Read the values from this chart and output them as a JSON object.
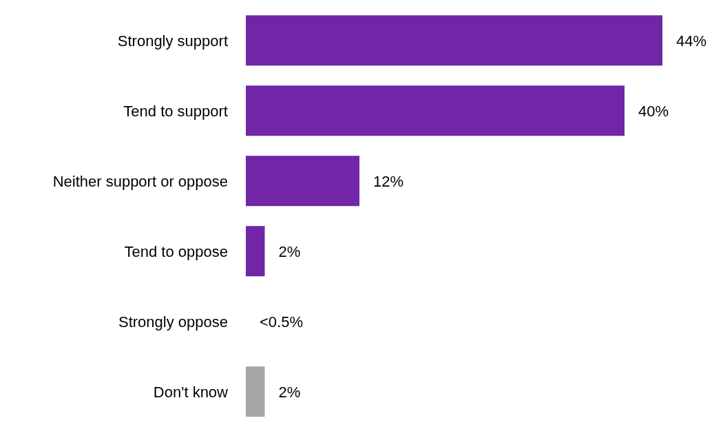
{
  "chart_data": {
    "type": "bar",
    "orientation": "horizontal",
    "categories": [
      "Strongly support",
      "Tend to support",
      "Neither support or oppose",
      "Tend to oppose",
      "Strongly oppose",
      "Don't know"
    ],
    "values": [
      44,
      40,
      12,
      2,
      0,
      2
    ],
    "value_labels": [
      "44%",
      "40%",
      "12%",
      "2%",
      "<0.5%",
      "2%"
    ],
    "colors": [
      "#7026a6",
      "#7026a6",
      "#7026a6",
      "#7026a6",
      "#7026a6",
      "#a6a6a6"
    ]
  }
}
